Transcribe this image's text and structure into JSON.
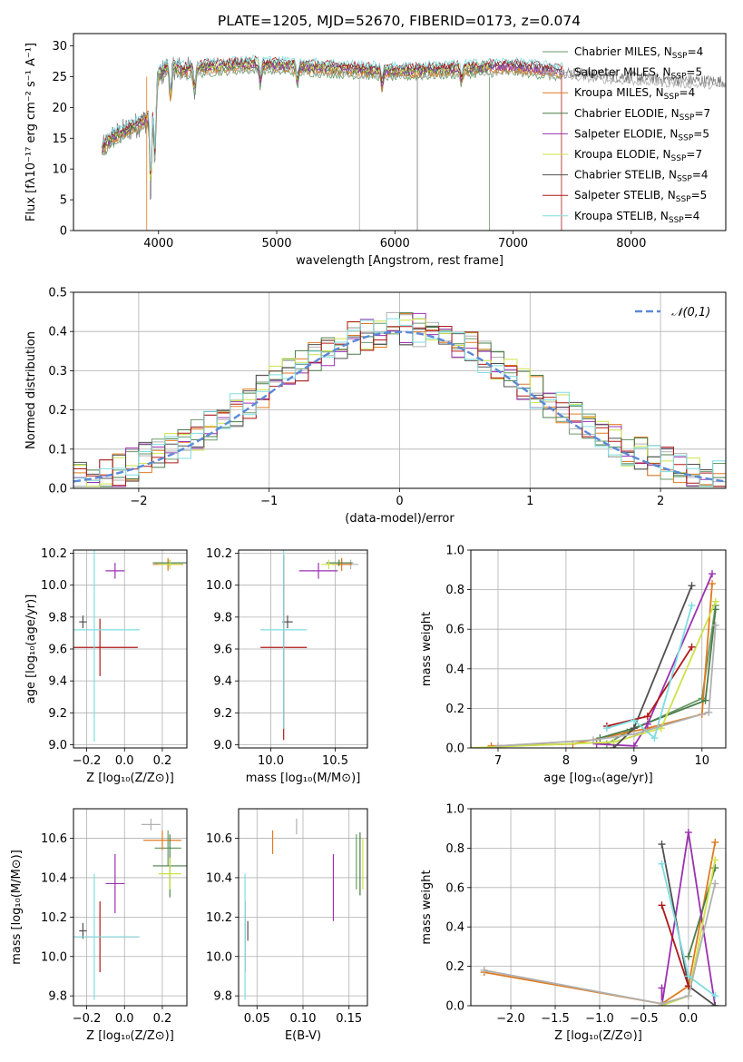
{
  "figure_title": "PLATE=1205, MJD=52670, FIBERID=0173, z=0.074",
  "models": [
    {
      "name": "Chabrier MILES",
      "nssp": "4",
      "color": "#6a9a6a"
    },
    {
      "name": "Salpeter MILES",
      "nssp": "5",
      "color": "#b0b0b0"
    },
    {
      "name": "Kroupa MILES",
      "nssp": "4",
      "color": "#e07a20"
    },
    {
      "name": "Chabrier ELODIE",
      "nssp": "7",
      "color": "#4a7d4a"
    },
    {
      "name": "Salpeter ELODIE",
      "nssp": "5",
      "color": "#9b30b0"
    },
    {
      "name": "Kroupa ELODIE",
      "nssp": "7",
      "color": "#cde24a"
    },
    {
      "name": "Chabrier STELIB",
      "nssp": "4",
      "color": "#505050"
    },
    {
      "name": "Salpeter STELIB",
      "nssp": "5",
      "color": "#b01818"
    },
    {
      "name": "Kroupa STELIB",
      "nssp": "4",
      "color": "#7fdde0"
    }
  ],
  "chart_data": [
    {
      "id": "spectrum",
      "type": "line",
      "xlabel": "wavelength [Angstrom, rest frame]",
      "ylabel": "Flux [fλ10⁻¹⁷ erg cm⁻² s⁻¹ A⁻¹]",
      "xlim": [
        3280,
        8800
      ],
      "ylim": [
        0,
        32
      ],
      "xticks": [
        4000,
        5000,
        6000,
        7000,
        8000
      ],
      "yticks": [
        0,
        5,
        10,
        15,
        20,
        25,
        30
      ],
      "grid": false,
      "legend": "top-right",
      "continuum": {
        "x": [
          3520,
          3600,
          3700,
          3800,
          3900,
          3950,
          4000,
          4100,
          4200,
          4400,
          4600,
          4800,
          5000,
          5500,
          6000,
          6500,
          7000,
          7500,
          8000,
          8500,
          8800
        ],
        "y": [
          13,
          15,
          16,
          17,
          18,
          21,
          25,
          27,
          26,
          26.5,
          26.8,
          27,
          26.8,
          26.3,
          25.8,
          26.2,
          26.6,
          25.6,
          24.9,
          24.4,
          24.2
        ]
      },
      "absorption": [
        [
          3934,
          15
        ],
        [
          3969,
          12
        ],
        [
          4102,
          6
        ],
        [
          4305,
          4
        ],
        [
          4861,
          3
        ],
        [
          5175,
          3
        ],
        [
          5892,
          3
        ],
        [
          6563,
          2
        ]
      ]
    },
    {
      "id": "residuals",
      "type": "histogram",
      "xlabel": "(data-model)/error",
      "ylabel": "Normed distribution",
      "xlim": [
        -2.5,
        2.5
      ],
      "ylim": [
        0,
        0.5
      ],
      "xticks": [
        -2,
        -1,
        0,
        1,
        2
      ],
      "yticks": [
        0,
        0.1,
        0.2,
        0.3,
        0.4,
        0.5
      ],
      "grid": true,
      "legend": "top-right",
      "reference": "𝒩(0,1)"
    },
    {
      "id": "age_vs_Z",
      "type": "scatter",
      "xlabel": "Z [log₁₀(Z/Z⊙)]",
      "ylabel": "age  [log₁₀(age/yr)]",
      "xlim": [
        -0.27,
        0.33
      ],
      "ylim": [
        8.98,
        10.22
      ],
      "xticks": [
        -0.2,
        0,
        0.2
      ],
      "xticklabels": [
        "−0.2",
        "0.0",
        "0.2"
      ],
      "yticks": [
        9.0,
        9.2,
        9.4,
        9.6,
        9.8,
        10.0,
        10.2
      ],
      "points": [
        {
          "m": 0,
          "x": 0.23,
          "y": 10.14,
          "xe": 0.07,
          "ye": 0.02
        },
        {
          "m": 1,
          "x": 0.23,
          "y": 10.13,
          "xe": 0.05,
          "ye": 0.03
        },
        {
          "m": 2,
          "x": 0.23,
          "y": 10.13,
          "xe": 0.08,
          "ye": 0.04
        },
        {
          "m": 3,
          "x": 0.24,
          "y": 10.14,
          "xe": 0.09,
          "ye": 0.02
        },
        {
          "m": 4,
          "x": -0.05,
          "y": 10.09,
          "xe": 0.05,
          "ye": 0.05
        },
        {
          "m": 5,
          "x": 0.24,
          "y": 10.13,
          "xe": 0.06,
          "ye": 0.03
        },
        {
          "m": 6,
          "x": -0.22,
          "y": 9.77,
          "xe": 0.02,
          "ye": 0.04
        },
        {
          "m": 7,
          "x": -0.13,
          "y": 9.61,
          "xe": 0.2,
          "ye": 0.18
        },
        {
          "m": 8,
          "x": -0.16,
          "y": 9.72,
          "xe": 0.24,
          "ye": 0.7
        }
      ]
    },
    {
      "id": "age_vs_mass",
      "type": "scatter",
      "xlabel": "mass [log₁₀(M/M⊙)]",
      "ylabel": "",
      "xlim": [
        9.75,
        10.75
      ],
      "ylim": [
        8.98,
        10.22
      ],
      "xticks": [
        10.0,
        10.5
      ],
      "xticklabels": [
        "10.0",
        "10.5"
      ],
      "yticks": [
        9.0,
        9.2,
        9.4,
        9.6,
        9.8,
        10.0,
        10.2
      ],
      "points": [
        {
          "m": 0,
          "x": 10.55,
          "y": 10.14,
          "xe": 0.09,
          "ye": 0.02
        },
        {
          "m": 1,
          "x": 10.62,
          "y": 10.13,
          "xe": 0.06,
          "ye": 0.03
        },
        {
          "m": 2,
          "x": 10.55,
          "y": 10.13,
          "xe": 0.08,
          "ye": 0.04
        },
        {
          "m": 3,
          "x": 10.53,
          "y": 10.14,
          "xe": 0.1,
          "ye": 0.02
        },
        {
          "m": 4,
          "x": 10.37,
          "y": 10.09,
          "xe": 0.15,
          "ye": 0.05
        },
        {
          "m": 5,
          "x": 10.45,
          "y": 10.13,
          "xe": 0.06,
          "ye": 0.03
        },
        {
          "m": 6,
          "x": 10.13,
          "y": 9.77,
          "xe": 0.04,
          "ye": 0.04
        },
        {
          "m": 7,
          "x": 10.1,
          "y": 9.61,
          "xe": 0.18,
          "ye": 0.58
        },
        {
          "m": 8,
          "x": 10.1,
          "y": 9.72,
          "xe": 0.18,
          "ye": 0.62
        }
      ]
    },
    {
      "id": "weight_vs_age",
      "type": "line",
      "xlabel": "age  [log₁₀(age/yr)]",
      "ylabel": "mass weight",
      "xlim": [
        6.6,
        10.35
      ],
      "ylim": [
        0,
        1
      ],
      "xticks": [
        7,
        8,
        9,
        10
      ],
      "yticks": [
        0,
        0.2,
        0.4,
        0.6,
        0.8,
        1.0
      ],
      "series": [
        {
          "m": 0,
          "x": [
            8.6,
            8.9,
            10.0,
            10.2
          ],
          "y": [
            0.02,
            0.08,
            0.25,
            0.72
          ]
        },
        {
          "m": 2,
          "x": [
            6.9,
            8.1,
            9.2,
            10.0,
            10.15
          ],
          "y": [
            0.01,
            0.02,
            0.1,
            0.17,
            0.83
          ]
        },
        {
          "m": 3,
          "x": [
            8.5,
            9.0,
            10.05,
            10.2
          ],
          "y": [
            0.05,
            0.1,
            0.24,
            0.7
          ]
        },
        {
          "m": 4,
          "x": [
            8.45,
            9.0,
            9.2,
            10.15
          ],
          "y": [
            0.02,
            0.01,
            0.12,
            0.88
          ]
        },
        {
          "m": 5,
          "x": [
            6.6,
            8.7,
            9.4,
            10.2
          ],
          "y": [
            0.0,
            0.03,
            0.1,
            0.74
          ]
        },
        {
          "m": 6,
          "x": [
            8.7,
            9.0,
            9.85
          ],
          "y": [
            0.0,
            0.1,
            0.82
          ]
        },
        {
          "m": 7,
          "x": [
            8.6,
            9.2,
            9.85
          ],
          "y": [
            0.11,
            0.16,
            0.51
          ]
        },
        {
          "m": 8,
          "x": [
            8.6,
            9.0,
            9.3,
            9.85
          ],
          "y": [
            0.1,
            0.14,
            0.05,
            0.72
          ]
        },
        {
          "m": 1,
          "x": [
            7.0,
            8.4,
            9.0,
            10.1,
            10.2
          ],
          "y": [
            0.01,
            0.04,
            0.07,
            0.18,
            0.62
          ]
        }
      ]
    },
    {
      "id": "mass_vs_Z",
      "type": "scatter",
      "xlabel": "Z [log₁₀(Z/Z⊙)]",
      "ylabel": "mass [log₁₀(M/M⊙)]",
      "xlim": [
        -0.27,
        0.33
      ],
      "ylim": [
        9.75,
        10.75
      ],
      "xticks": [
        -0.2,
        0,
        0.2
      ],
      "xticklabels": [
        "−0.2",
        "0.0",
        "0.2"
      ],
      "yticks": [
        9.8,
        10.0,
        10.2,
        10.4,
        10.6
      ],
      "points": [
        {
          "m": 0,
          "x": 0.23,
          "y": 10.55,
          "xe": 0.07,
          "ye": 0.09
        },
        {
          "m": 1,
          "x": 0.14,
          "y": 10.67,
          "xe": 0.05,
          "ye": 0.03
        },
        {
          "m": 2,
          "x": 0.2,
          "y": 10.59,
          "xe": 0.1,
          "ye": 0.05
        },
        {
          "m": 3,
          "x": 0.24,
          "y": 10.46,
          "xe": 0.09,
          "ye": 0.16
        },
        {
          "m": 4,
          "x": -0.05,
          "y": 10.37,
          "xe": 0.05,
          "ye": 0.15
        },
        {
          "m": 5,
          "x": 0.24,
          "y": 10.42,
          "xe": 0.06,
          "ye": 0.08
        },
        {
          "m": 6,
          "x": -0.22,
          "y": 10.13,
          "xe": 0.02,
          "ye": 0.04
        },
        {
          "m": 7,
          "x": -0.13,
          "y": 10.1,
          "xe": 0.2,
          "ye": 0.18
        },
        {
          "m": 8,
          "x": -0.16,
          "y": 10.1,
          "xe": 0.24,
          "ye": 0.32
        }
      ]
    },
    {
      "id": "mass_vs_EBV",
      "type": "scatter",
      "xlabel": "E(B-V)",
      "ylabel": "",
      "xlim": [
        0.03,
        0.17
      ],
      "ylim": [
        9.75,
        10.75
      ],
      "xticks": [
        0.05,
        0.1,
        0.15
      ],
      "xticklabels": [
        "0.05",
        "0.10",
        "0.15"
      ],
      "yticks": [
        9.8,
        10.0,
        10.2,
        10.4,
        10.6
      ],
      "points": [
        {
          "m": 0,
          "x": 0.158,
          "y": 10.48,
          "xe": 0,
          "ye": 0.14
        },
        {
          "m": 1,
          "x": 0.093,
          "y": 10.66,
          "xe": 0,
          "ye": 0.04
        },
        {
          "m": 2,
          "x": 0.067,
          "y": 10.58,
          "xe": 0,
          "ye": 0.06
        },
        {
          "m": 3,
          "x": 0.162,
          "y": 10.47,
          "xe": 0,
          "ye": 0.16
        },
        {
          "m": 4,
          "x": 0.133,
          "y": 10.35,
          "xe": 0,
          "ye": 0.17
        },
        {
          "m": 5,
          "x": 0.165,
          "y": 10.47,
          "xe": 0,
          "ye": 0.13
        },
        {
          "m": 6,
          "x": 0.04,
          "y": 10.13,
          "xe": 0,
          "ye": 0.05
        },
        {
          "m": 7,
          "x": 0.037,
          "y": 10.1,
          "xe": 0,
          "ye": 0.18
        },
        {
          "m": 8,
          "x": 0.037,
          "y": 10.1,
          "xe": 0,
          "ye": 0.32
        }
      ]
    },
    {
      "id": "weight_vs_Z",
      "type": "line",
      "xlabel": "Z [log₁₀(Z/Z⊙)]",
      "ylabel": "mass weight",
      "xlim": [
        -2.45,
        0.42
      ],
      "ylim": [
        0,
        1
      ],
      "xticks": [
        -2.0,
        -1.5,
        -1.0,
        -0.5,
        0.0
      ],
      "xticklabels": [
        "−2.0",
        "−1.5",
        "−1.0",
        "−0.5",
        "0.0"
      ],
      "yticks": [
        0,
        0.2,
        0.4,
        0.6,
        0.8,
        1.0
      ],
      "series": [
        {
          "m": 2,
          "x": [
            -2.3,
            -0.3,
            0.0,
            0.3
          ],
          "y": [
            0.17,
            0.01,
            0.1,
            0.83
          ]
        },
        {
          "m": 3,
          "x": [
            0.0,
            0.3
          ],
          "y": [
            0.25,
            0.7
          ]
        },
        {
          "m": 4,
          "x": [
            -0.3,
            -0.3,
            0.0,
            0.3
          ],
          "y": [
            0.09,
            0.0,
            0.88,
            0.0
          ]
        },
        {
          "m": 5,
          "x": [
            -0.3,
            0.0,
            0.3
          ],
          "y": [
            0.0,
            0.05,
            0.74
          ]
        },
        {
          "m": 6,
          "x": [
            -0.3,
            0.0,
            0.3
          ],
          "y": [
            0.82,
            0.1,
            0.0
          ]
        },
        {
          "m": 7,
          "x": [
            -0.3,
            0.0
          ],
          "y": [
            0.51,
            0.1
          ]
        },
        {
          "m": 8,
          "x": [
            -0.3,
            0.0,
            0.3
          ],
          "y": [
            0.72,
            0.15,
            0.05
          ]
        },
        {
          "m": 1,
          "x": [
            -2.3,
            -0.3,
            0.0,
            0.3
          ],
          "y": [
            0.18,
            0.01,
            0.05,
            0.62
          ]
        }
      ]
    }
  ]
}
